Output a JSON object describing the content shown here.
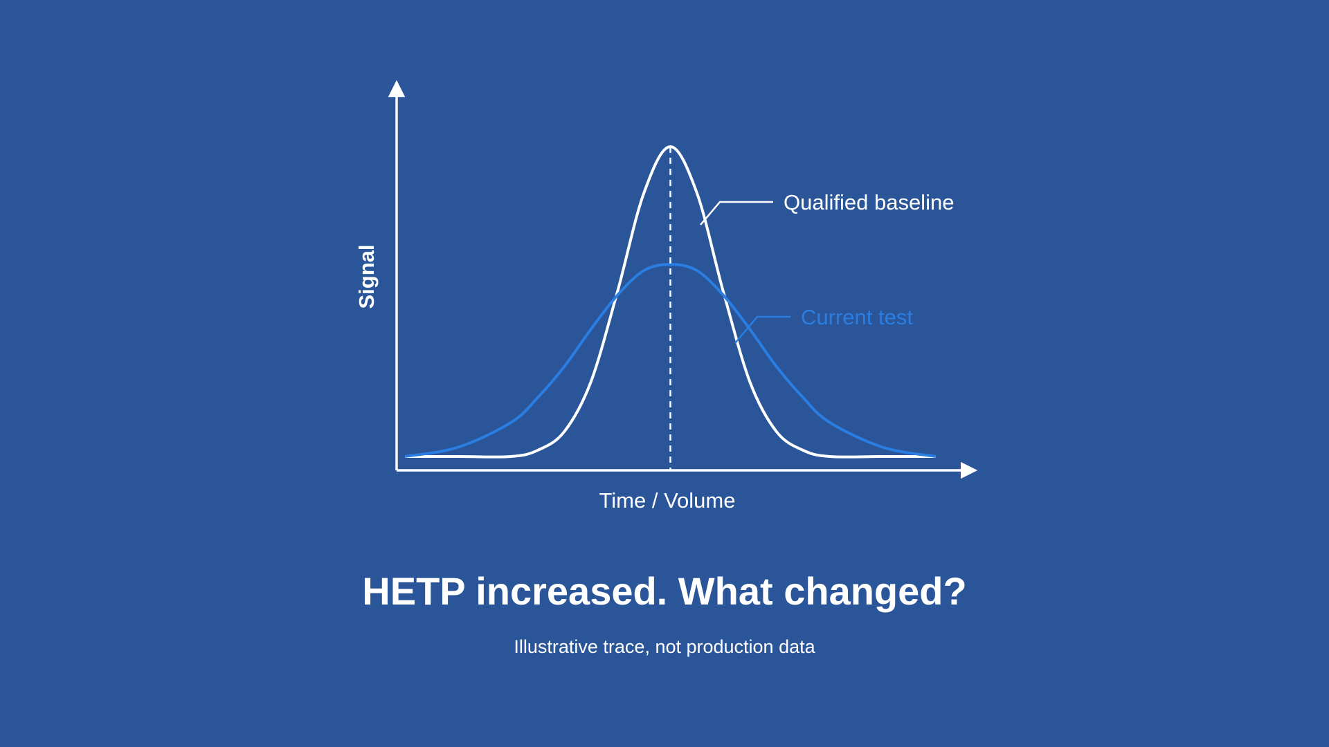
{
  "headline": "HETP increased. What changed?",
  "caption": "Illustrative trace, not production data",
  "colors": {
    "background": "#2b5599",
    "baseline": "#ffffff",
    "current": "#2a7de1",
    "axis": "#ffffff"
  },
  "chart_data": {
    "type": "line",
    "title": "",
    "xlabel": "Time / Volume",
    "ylabel": "Signal",
    "xlim": [
      -5,
      5
    ],
    "ylim": [
      0,
      1.1
    ],
    "grid": false,
    "peak_marker": {
      "x": 0,
      "style": "dashed"
    },
    "series": [
      {
        "name": "Qualified baseline",
        "color": "#ffffff",
        "x": [
          -5,
          -4,
          -3,
          -2.5,
          -2,
          -1.5,
          -1,
          -0.5,
          0,
          0.5,
          1,
          1.5,
          2,
          2.5,
          3,
          4,
          5
        ],
        "y": [
          0.0,
          0.0,
          0.0,
          0.02,
          0.08,
          0.24,
          0.53,
          0.85,
          1.0,
          0.85,
          0.53,
          0.24,
          0.08,
          0.02,
          0.0,
          0.0,
          0.0
        ]
      },
      {
        "name": "Current test",
        "color": "#2a7de1",
        "x": [
          -5,
          -4,
          -3,
          -2.5,
          -2,
          -1.5,
          -1,
          -0.5,
          0,
          0.5,
          1,
          1.5,
          2,
          2.5,
          3,
          4,
          5
        ],
        "y": [
          0.0,
          0.03,
          0.11,
          0.19,
          0.29,
          0.41,
          0.52,
          0.6,
          0.62,
          0.6,
          0.52,
          0.41,
          0.29,
          0.19,
          0.11,
          0.03,
          0.0
        ]
      }
    ]
  }
}
